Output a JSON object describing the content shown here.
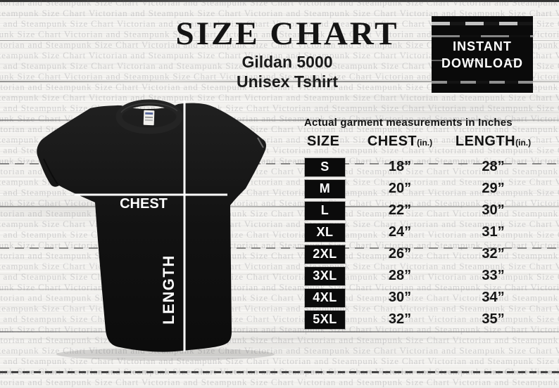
{
  "title": "SIZE CHART",
  "subtitle": {
    "line1": "Gildan 5000",
    "line2": "Unisex Tshirt"
  },
  "download_badge": {
    "line1": "INSTANT",
    "line2": "DOWNLOAD"
  },
  "shirt_diagram": {
    "chest_label": "CHEST",
    "length_label": "LENGTH"
  },
  "table": {
    "note": "Actual garment measurements in Inches",
    "columns": [
      {
        "label": "SIZE",
        "unit": ""
      },
      {
        "label": "CHEST",
        "unit": "(in.)"
      },
      {
        "label": "LENGTH",
        "unit": "(in.)"
      }
    ],
    "rows": [
      {
        "size": "S",
        "chest": "18”",
        "length": "28”"
      },
      {
        "size": "M",
        "chest": "20”",
        "length": "29”"
      },
      {
        "size": "L",
        "chest": "22”",
        "length": "30”"
      },
      {
        "size": "XL",
        "chest": "24”",
        "length": "31”"
      },
      {
        "size": "2XL",
        "chest": "26”",
        "length": "32”"
      },
      {
        "size": "3XL",
        "chest": "28”",
        "length": "33”"
      },
      {
        "size": "4XL",
        "chest": "30”",
        "length": "34”"
      },
      {
        "size": "5XL",
        "chest": "32”",
        "length": "35”"
      }
    ]
  },
  "watermark": {
    "phrase": "Victorian and Steampunk Size Chart"
  },
  "colors": {
    "ink": "#121212",
    "badge_bg": "#0a0a0a",
    "badge_text": "#ffffff",
    "shirt": "#131313",
    "measure_line": "#ffffff",
    "wood_base": "#f3f2ef",
    "watermark_text": "#c0c0c4"
  },
  "chart_data": {
    "type": "table",
    "title": "SIZE CHART",
    "subtitle": "Gildan 5000 Unisex Tshirt",
    "note": "Actual garment measurements in Inches",
    "columns": [
      "SIZE",
      "CHEST (in.)",
      "LENGTH (in.)"
    ],
    "rows": [
      [
        "S",
        18,
        28
      ],
      [
        "M",
        20,
        29
      ],
      [
        "L",
        22,
        30
      ],
      [
        "XL",
        24,
        31
      ],
      [
        "2XL",
        26,
        32
      ],
      [
        "3XL",
        28,
        33
      ],
      [
        "4XL",
        30,
        34
      ],
      [
        "5XL",
        32,
        35
      ]
    ],
    "units": "inches"
  }
}
